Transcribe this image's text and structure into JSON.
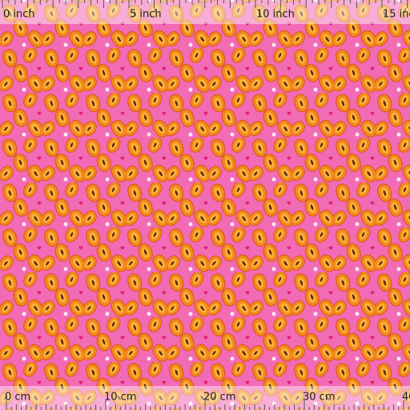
{
  "ruler_top": {
    "labels": [
      "0 inch",
      "5 inch",
      "10 inch",
      "15 inch"
    ]
  },
  "ruler_bottom": {
    "labels": [
      "0 cm",
      "10 cm",
      "20 cm",
      "30 cm",
      "40"
    ]
  }
}
